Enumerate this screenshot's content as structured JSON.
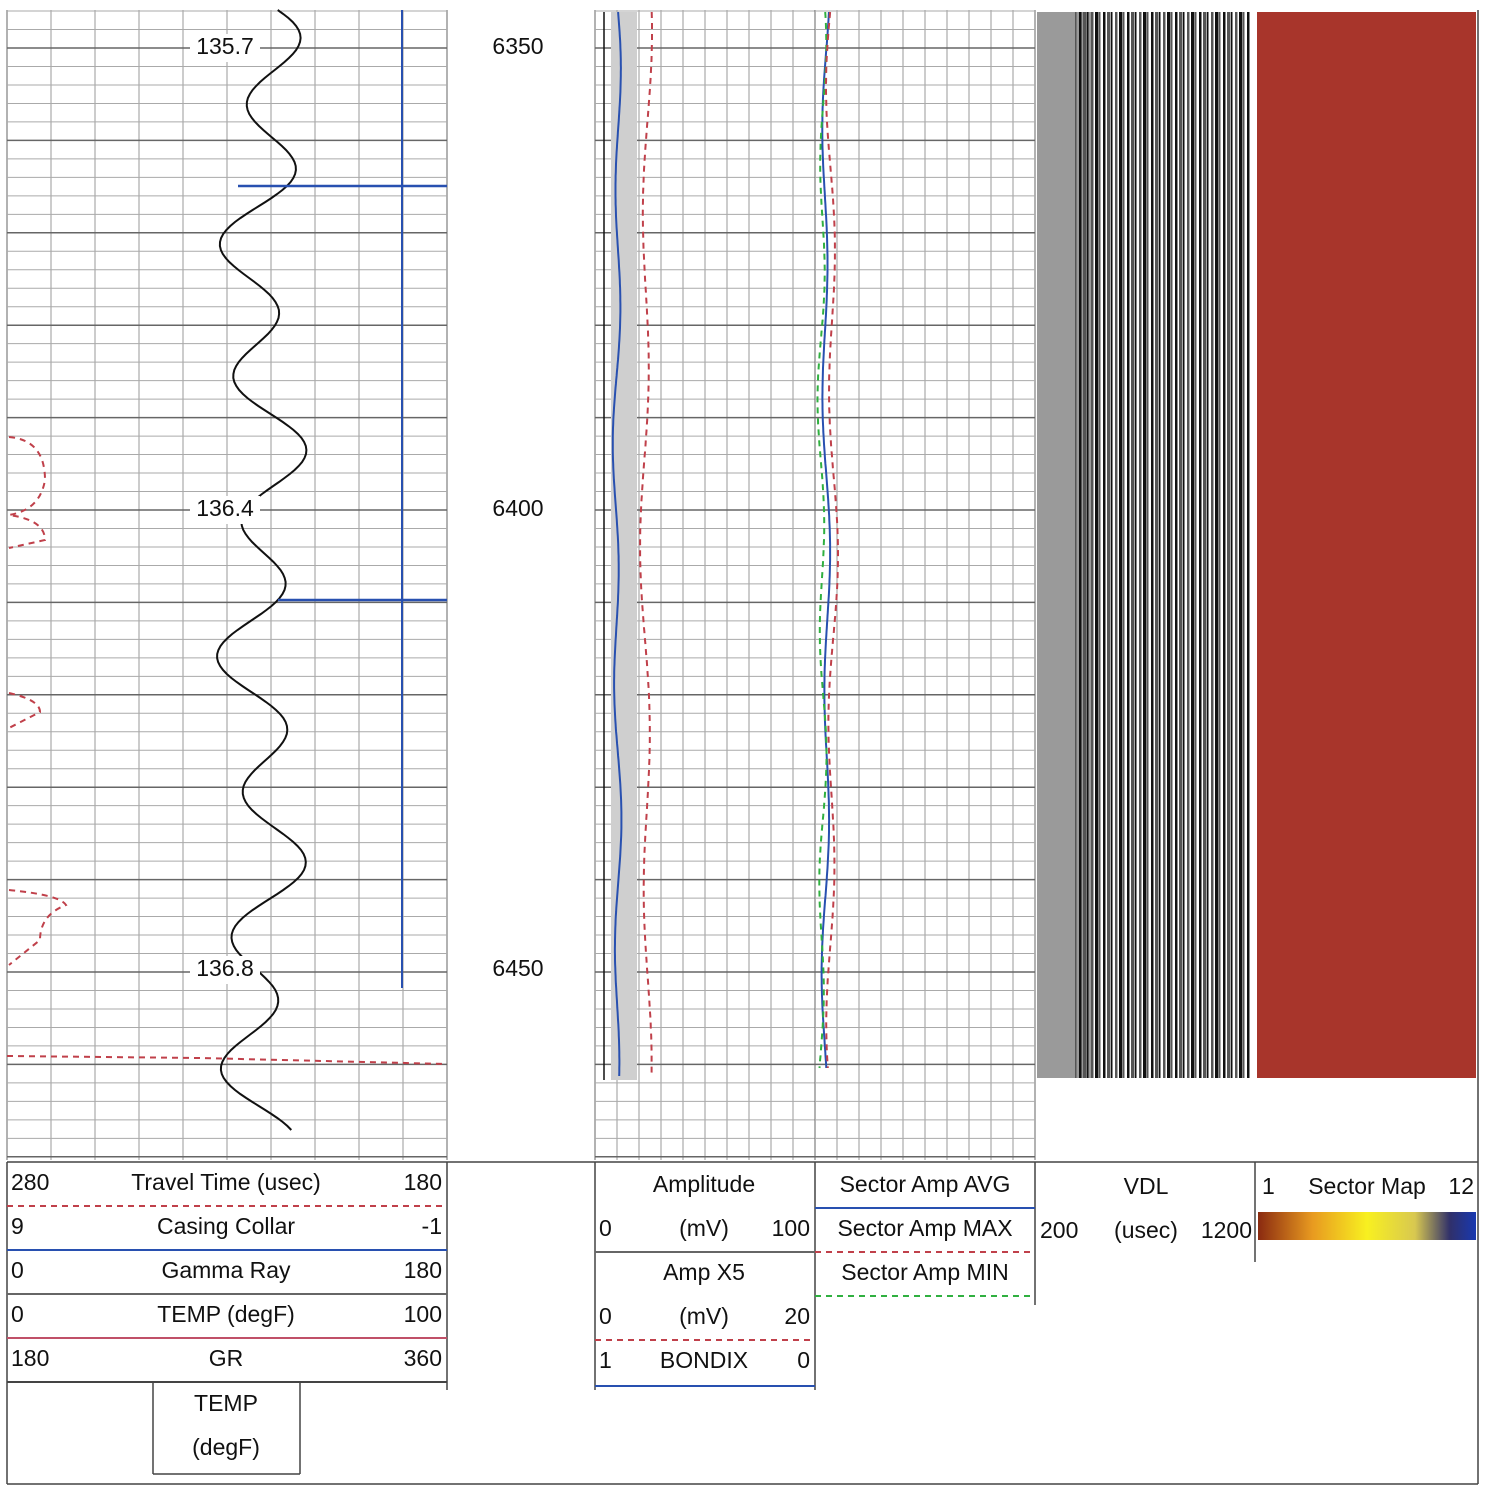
{
  "log": {
    "track1_marks": [
      "135.7",
      "136.4",
      "136.8"
    ],
    "depths": [
      "6350",
      "6400",
      "6450"
    ]
  },
  "headers": {
    "track1": [
      {
        "min": "280",
        "name": "Travel Time (usec)",
        "max": "180"
      },
      {
        "min": "9",
        "name": "Casing Collar",
        "max": "-1"
      },
      {
        "min": "0",
        "name": "Gamma Ray",
        "max": "180"
      },
      {
        "min": "0",
        "name": "TEMP (degF)",
        "max": "100"
      },
      {
        "min": "180",
        "name": "GR",
        "max": "360"
      }
    ],
    "temp_box": [
      "TEMP",
      "(degF)"
    ],
    "track2": [
      {
        "name": "Amplitude",
        "min": "0",
        "unit": "(mV)",
        "max": "100"
      },
      {
        "name": "Amp X5",
        "min": "0",
        "unit": "(mV)",
        "max": "20"
      },
      {
        "min": "1",
        "name": "BONDIX",
        "max": "0"
      }
    ],
    "track3": [
      "Sector Amp AVG",
      "Sector Amp MAX",
      "Sector Amp MIN"
    ],
    "vdl": {
      "name": "VDL",
      "min": "200",
      "unit": "(usec)",
      "max": "1200"
    },
    "sector_map": {
      "min": "1",
      "name": "Sector Map",
      "max": "12"
    }
  }
}
